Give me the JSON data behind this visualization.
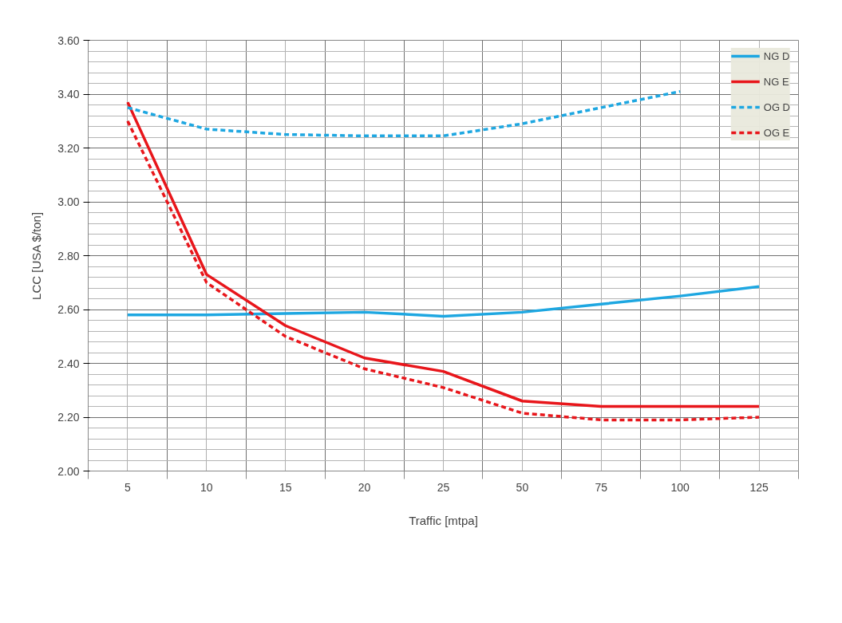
{
  "chart_data": {
    "type": "line",
    "xlabel": "Traffic [mtpa]",
    "ylabel": "LCC [USA $/ton]",
    "categories": [
      "5",
      "10",
      "15",
      "20",
      "25",
      "50",
      "75",
      "100",
      "125"
    ],
    "ylim": [
      2.0,
      3.6
    ],
    "yticks": [
      {
        "value": 2.0,
        "label": "2.00"
      },
      {
        "value": 2.2,
        "label": "2.20"
      },
      {
        "value": 2.4,
        "label": "2.40"
      },
      {
        "value": 2.6,
        "label": "2.60"
      },
      {
        "value": 2.8,
        "label": "2.80"
      },
      {
        "value": 3.0,
        "label": "3.00"
      },
      {
        "value": 3.2,
        "label": "3.20"
      },
      {
        "value": 3.4,
        "label": "3.40"
      },
      {
        "value": 3.6,
        "label": "3.60"
      }
    ],
    "grid": true,
    "legend": "top right",
    "series": [
      {
        "name": "NG D",
        "color": "#1ea7e1",
        "line_style": "solid",
        "values": [
          2.58,
          2.58,
          2.585,
          2.59,
          2.575,
          2.59,
          2.62,
          2.65,
          2.685
        ]
      },
      {
        "name": "NG E",
        "color": "#e8161b",
        "line_style": "solid",
        "values": [
          3.37,
          2.73,
          2.54,
          2.42,
          2.37,
          2.26,
          2.24,
          2.24,
          2.24
        ]
      },
      {
        "name": "OG D",
        "color": "#1ea7e1",
        "line_style": "dashed",
        "values": [
          3.35,
          3.27,
          3.25,
          3.245,
          3.245,
          3.29,
          3.35,
          3.41,
          null
        ]
      },
      {
        "name": "OG E",
        "color": "#e8161b",
        "line_style": "dashed",
        "values": [
          3.3,
          2.7,
          2.5,
          2.38,
          2.31,
          2.215,
          2.19,
          2.19,
          2.2
        ]
      }
    ]
  }
}
